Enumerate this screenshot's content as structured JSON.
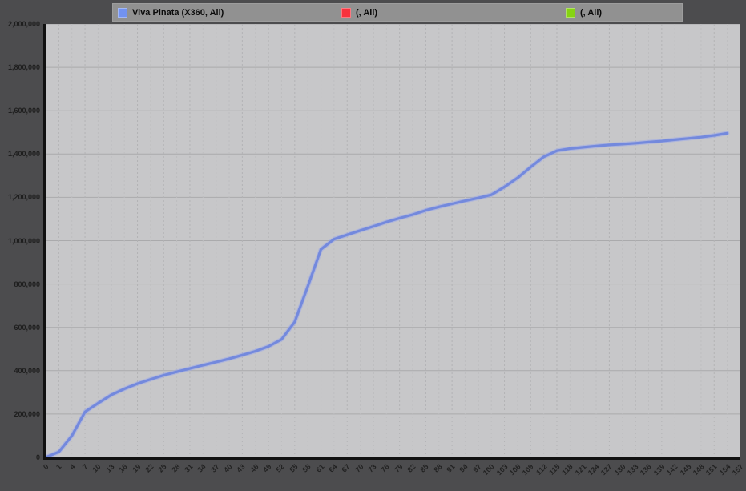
{
  "page": {
    "background": "#4c4c4e",
    "plot_background": "#c7c7c9",
    "axis_color": "#111111",
    "h_gridline_color": "#aaaaac",
    "v_gridline_color": "#b3b3b5",
    "label_color": "#1e1e1e"
  },
  "legend": {
    "items": [
      {
        "label": "Viva Pinata (X360, All)",
        "color": "#7292f0"
      },
      {
        "label": "(, All)",
        "color": "#f7323d"
      },
      {
        "label": "(, All)",
        "color": "#86d312"
      }
    ]
  },
  "chart_data": {
    "type": "line",
    "title": "",
    "xlabel": "",
    "ylabel": "",
    "ylim": [
      0,
      2000000
    ],
    "y_tick_step": 200000,
    "grid": true,
    "legend_position": "top",
    "categories": [
      0,
      1,
      4,
      7,
      10,
      13,
      16,
      19,
      22,
      25,
      28,
      31,
      34,
      37,
      40,
      43,
      46,
      49,
      52,
      55,
      58,
      61,
      64,
      67,
      70,
      73,
      76,
      79,
      82,
      85,
      88,
      91,
      94,
      97,
      100,
      103,
      106,
      109,
      112,
      115,
      118,
      121,
      124,
      127,
      130,
      133,
      136,
      139,
      142,
      145,
      148,
      151,
      154,
      157
    ],
    "series": [
      {
        "name": "Viva Pinata (X360, All)",
        "color": "#7389dd",
        "halo_color": "#9aa8ea",
        "values": [
          0,
          25000,
          100000,
          210000,
          250000,
          288000,
          316000,
          340000,
          360000,
          379000,
          395000,
          410000,
          425000,
          440000,
          455000,
          472000,
          490000,
          512000,
          545000,
          625000,
          790000,
          960000,
          1007000,
          1027000,
          1047000,
          1066000,
          1086000,
          1104000,
          1120000,
          1140000,
          1156000,
          1170000,
          1184000,
          1197000,
          1212000,
          1248000,
          1290000,
          1340000,
          1387000,
          1415000,
          1425000,
          1431000,
          1437000,
          1442000,
          1446000,
          1450000,
          1455000,
          1460000,
          1466000,
          1472000,
          1478000,
          1486000,
          1496000,
          null
        ]
      },
      {
        "name": "(, All)",
        "color": "#f7323d",
        "values": []
      },
      {
        "name": "(, All)",
        "color": "#86d312",
        "values": []
      }
    ]
  }
}
